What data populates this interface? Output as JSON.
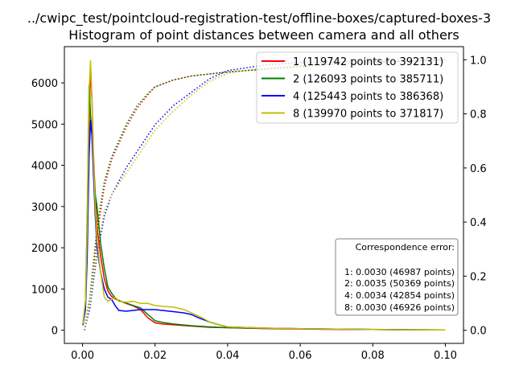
{
  "chart_data": {
    "type": "line",
    "title": "../cwipc_test/pointcloud-registration-test/offline-boxes/captured-boxes-3",
    "subtitle": "Histogram of point distances between camera and all others",
    "xlabel": "",
    "ylabel": "",
    "y2label": "",
    "xlim": [
      -0.005,
      0.105
    ],
    "ylim": [
      -320,
      6880
    ],
    "y2lim": [
      -0.0485,
      1.0485
    ],
    "xticks": [
      "0.00",
      "0.02",
      "0.04",
      "0.06",
      "0.08",
      "0.10"
    ],
    "xtick_values": [
      0,
      0.02,
      0.04,
      0.06,
      0.08,
      0.1
    ],
    "yticks": [
      "0",
      "1000",
      "2000",
      "3000",
      "4000",
      "5000",
      "6000"
    ],
    "ytick_values": [
      0,
      1000,
      2000,
      3000,
      4000,
      5000,
      6000
    ],
    "y2ticks": [
      "0.0",
      "0.2",
      "0.4",
      "0.6",
      "0.8",
      "1.0"
    ],
    "y2tick_values": [
      0,
      0.2,
      0.4,
      0.6,
      0.8,
      1.0
    ],
    "grid": false,
    "legend_position": "top-right",
    "series": [
      {
        "name": "1 (119742 points to 392131)",
        "color": "#ff0000",
        "histogram": [
          [
            0.0001,
            150
          ],
          [
            0.0008,
            600
          ],
          [
            0.0013,
            2000
          ],
          [
            0.0018,
            4800
          ],
          [
            0.0022,
            6450
          ],
          [
            0.0026,
            5600
          ],
          [
            0.003,
            4300
          ],
          [
            0.0035,
            3300
          ],
          [
            0.004,
            2500
          ],
          [
            0.005,
            1800
          ],
          [
            0.006,
            1250
          ],
          [
            0.007,
            950
          ],
          [
            0.008,
            820
          ],
          [
            0.009,
            760
          ],
          [
            0.01,
            720
          ],
          [
            0.012,
            650
          ],
          [
            0.014,
            590
          ],
          [
            0.016,
            500
          ],
          [
            0.018,
            300
          ],
          [
            0.02,
            180
          ],
          [
            0.022,
            150
          ],
          [
            0.025,
            130
          ],
          [
            0.03,
            100
          ],
          [
            0.035,
            70
          ],
          [
            0.04,
            60
          ],
          [
            0.05,
            40
          ],
          [
            0.06,
            30
          ],
          [
            0.07,
            20
          ],
          [
            0.08,
            15
          ],
          [
            0.09,
            10
          ],
          [
            0.1,
            5
          ]
        ],
        "cumulative": [
          [
            0.0005,
            0.0
          ],
          [
            0.002,
            0.1
          ],
          [
            0.004,
            0.35
          ],
          [
            0.006,
            0.53
          ],
          [
            0.008,
            0.63
          ],
          [
            0.01,
            0.69
          ],
          [
            0.012,
            0.75
          ],
          [
            0.015,
            0.82
          ],
          [
            0.018,
            0.87
          ],
          [
            0.02,
            0.9
          ],
          [
            0.025,
            0.925
          ],
          [
            0.03,
            0.94
          ],
          [
            0.04,
            0.955
          ],
          [
            0.05,
            0.965
          ],
          [
            0.06,
            0.975
          ],
          [
            0.07,
            0.985
          ],
          [
            0.08,
            0.99
          ],
          [
            0.1,
            1.0
          ]
        ]
      },
      {
        "name": "2 (126093 points to 385711)",
        "color": "#008000",
        "histogram": [
          [
            0.0001,
            150
          ],
          [
            0.0008,
            700
          ],
          [
            0.0013,
            2800
          ],
          [
            0.0018,
            5950
          ],
          [
            0.0022,
            5200
          ],
          [
            0.0026,
            4800
          ],
          [
            0.003,
            4000
          ],
          [
            0.0035,
            3300
          ],
          [
            0.004,
            3000
          ],
          [
            0.005,
            2100
          ],
          [
            0.006,
            1500
          ],
          [
            0.007,
            1050
          ],
          [
            0.008,
            900
          ],
          [
            0.009,
            780
          ],
          [
            0.01,
            720
          ],
          [
            0.012,
            660
          ],
          [
            0.014,
            600
          ],
          [
            0.016,
            540
          ],
          [
            0.018,
            380
          ],
          [
            0.02,
            230
          ],
          [
            0.022,
            190
          ],
          [
            0.025,
            150
          ],
          [
            0.03,
            110
          ],
          [
            0.035,
            80
          ],
          [
            0.04,
            60
          ],
          [
            0.05,
            45
          ],
          [
            0.06,
            35
          ],
          [
            0.07,
            25
          ],
          [
            0.08,
            20
          ],
          [
            0.09,
            12
          ],
          [
            0.1,
            5
          ]
        ],
        "cumulative": [
          [
            0.0005,
            0.0
          ],
          [
            0.002,
            0.12
          ],
          [
            0.004,
            0.38
          ],
          [
            0.006,
            0.55
          ],
          [
            0.008,
            0.64
          ],
          [
            0.01,
            0.7
          ],
          [
            0.012,
            0.76
          ],
          [
            0.015,
            0.83
          ],
          [
            0.018,
            0.875
          ],
          [
            0.02,
            0.9
          ],
          [
            0.025,
            0.925
          ],
          [
            0.03,
            0.94
          ],
          [
            0.04,
            0.955
          ],
          [
            0.05,
            0.965
          ],
          [
            0.06,
            0.975
          ],
          [
            0.07,
            0.985
          ],
          [
            0.08,
            0.99
          ],
          [
            0.1,
            1.0
          ]
        ]
      },
      {
        "name": "4 (125443 points to 386368)",
        "color": "#0000ff",
        "histogram": [
          [
            0.0001,
            120
          ],
          [
            0.0008,
            500
          ],
          [
            0.0013,
            1800
          ],
          [
            0.0018,
            4200
          ],
          [
            0.0022,
            5100
          ],
          [
            0.0026,
            4700
          ],
          [
            0.003,
            3800
          ],
          [
            0.0035,
            2800
          ],
          [
            0.004,
            2000
          ],
          [
            0.005,
            1400
          ],
          [
            0.006,
            1000
          ],
          [
            0.007,
            800
          ],
          [
            0.008,
            750
          ],
          [
            0.009,
            600
          ],
          [
            0.01,
            480
          ],
          [
            0.012,
            460
          ],
          [
            0.014,
            480
          ],
          [
            0.016,
            500
          ],
          [
            0.018,
            500
          ],
          [
            0.02,
            500
          ],
          [
            0.022,
            480
          ],
          [
            0.025,
            450
          ],
          [
            0.028,
            420
          ],
          [
            0.03,
            380
          ],
          [
            0.032,
            300
          ],
          [
            0.035,
            200
          ],
          [
            0.038,
            120
          ],
          [
            0.04,
            80
          ],
          [
            0.05,
            50
          ],
          [
            0.06,
            35
          ],
          [
            0.07,
            25
          ],
          [
            0.08,
            15
          ],
          [
            0.09,
            10
          ],
          [
            0.1,
            5
          ]
        ],
        "cumulative": [
          [
            0.0005,
            0.0
          ],
          [
            0.002,
            0.08
          ],
          [
            0.004,
            0.28
          ],
          [
            0.006,
            0.42
          ],
          [
            0.008,
            0.5
          ],
          [
            0.01,
            0.55
          ],
          [
            0.012,
            0.6
          ],
          [
            0.015,
            0.66
          ],
          [
            0.018,
            0.72
          ],
          [
            0.02,
            0.76
          ],
          [
            0.025,
            0.83
          ],
          [
            0.03,
            0.88
          ],
          [
            0.035,
            0.93
          ],
          [
            0.04,
            0.96
          ],
          [
            0.05,
            0.98
          ],
          [
            0.06,
            0.99
          ],
          [
            0.08,
            0.995
          ],
          [
            0.1,
            1.0
          ]
        ]
      },
      {
        "name": "8 (139970 points to 371817)",
        "color": "#bfbf00",
        "histogram": [
          [
            0.0001,
            150
          ],
          [
            0.0008,
            700
          ],
          [
            0.0013,
            2500
          ],
          [
            0.0018,
            5800
          ],
          [
            0.0022,
            6550
          ],
          [
            0.0026,
            5500
          ],
          [
            0.003,
            4200
          ],
          [
            0.0035,
            3000
          ],
          [
            0.004,
            2200
          ],
          [
            0.005,
            1400
          ],
          [
            0.006,
            800
          ],
          [
            0.007,
            700
          ],
          [
            0.008,
            750
          ],
          [
            0.009,
            800
          ],
          [
            0.01,
            700
          ],
          [
            0.012,
            680
          ],
          [
            0.014,
            700
          ],
          [
            0.016,
            650
          ],
          [
            0.018,
            650
          ],
          [
            0.02,
            600
          ],
          [
            0.022,
            580
          ],
          [
            0.025,
            560
          ],
          [
            0.028,
            500
          ],
          [
            0.03,
            420
          ],
          [
            0.033,
            300
          ],
          [
            0.035,
            200
          ],
          [
            0.038,
            120
          ],
          [
            0.04,
            80
          ],
          [
            0.05,
            50
          ],
          [
            0.06,
            35
          ],
          [
            0.07,
            25
          ],
          [
            0.08,
            15
          ],
          [
            0.09,
            10
          ],
          [
            0.1,
            5
          ]
        ],
        "cumulative": [
          [
            0.0005,
            0.0
          ],
          [
            0.002,
            0.1
          ],
          [
            0.004,
            0.3
          ],
          [
            0.006,
            0.44
          ],
          [
            0.008,
            0.5
          ],
          [
            0.01,
            0.54
          ],
          [
            0.012,
            0.58
          ],
          [
            0.015,
            0.64
          ],
          [
            0.018,
            0.7
          ],
          [
            0.02,
            0.74
          ],
          [
            0.025,
            0.81
          ],
          [
            0.03,
            0.87
          ],
          [
            0.035,
            0.92
          ],
          [
            0.04,
            0.95
          ],
          [
            0.05,
            0.97
          ],
          [
            0.06,
            0.98
          ],
          [
            0.08,
            0.99
          ],
          [
            0.1,
            1.0
          ]
        ]
      }
    ],
    "annotation": {
      "title": "Correspondence error:",
      "lines": [
        "1: 0.0030 (46987 points)",
        "2: 0.0035 (50369 points)",
        "4: 0.0034 (42854 points)",
        "8: 0.0030 (46926 points)"
      ]
    }
  }
}
